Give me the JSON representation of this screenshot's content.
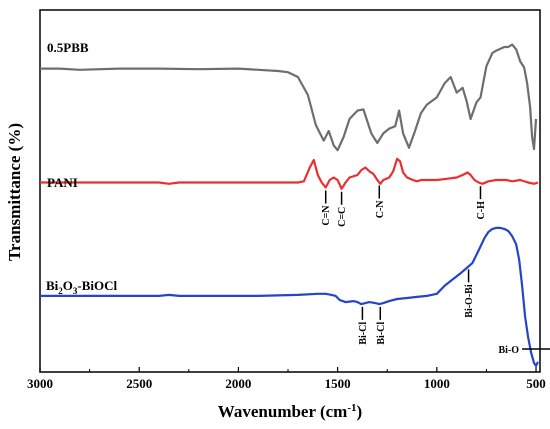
{
  "chart_data": {
    "type": "line",
    "xlabel": "Wavenumber (cm",
    "xlabel_sup": "-1",
    "xlabel_end": ")",
    "ylabel": "Transmittance (%)",
    "xlim": [
      3000,
      480
    ],
    "x_reversed": true,
    "y_ticks_shown": false,
    "grid": false,
    "xticks": [
      "3000",
      "2500",
      "2000",
      "1500",
      "1000",
      "500"
    ],
    "series": [
      {
        "name": "0.5PBB",
        "color": "#6e6e6e",
        "points": [
          [
            3000,
            72
          ],
          [
            2900,
            72
          ],
          [
            2800,
            71
          ],
          [
            2600,
            72
          ],
          [
            2400,
            72
          ],
          [
            2200,
            71.5
          ],
          [
            2000,
            72
          ],
          [
            1900,
            71
          ],
          [
            1800,
            70
          ],
          [
            1750,
            69
          ],
          [
            1700,
            65
          ],
          [
            1650,
            50
          ],
          [
            1610,
            25
          ],
          [
            1570,
            12
          ],
          [
            1545,
            20
          ],
          [
            1520,
            8
          ],
          [
            1500,
            4
          ],
          [
            1470,
            15
          ],
          [
            1440,
            30
          ],
          [
            1400,
            37
          ],
          [
            1370,
            38
          ],
          [
            1330,
            18
          ],
          [
            1300,
            10
          ],
          [
            1270,
            18
          ],
          [
            1240,
            22
          ],
          [
            1210,
            24
          ],
          [
            1190,
            37
          ],
          [
            1170,
            18
          ],
          [
            1140,
            6
          ],
          [
            1110,
            20
          ],
          [
            1080,
            35
          ],
          [
            1050,
            42
          ],
          [
            1000,
            48
          ],
          [
            960,
            60
          ],
          [
            930,
            65
          ],
          [
            900,
            52
          ],
          [
            870,
            56
          ],
          [
            850,
            45
          ],
          [
            830,
            30
          ],
          [
            800,
            44
          ],
          [
            780,
            48
          ],
          [
            750,
            74
          ],
          [
            720,
            85
          ],
          [
            700,
            87
          ],
          [
            660,
            90
          ],
          [
            640,
            90
          ],
          [
            620,
            92
          ],
          [
            600,
            88
          ],
          [
            580,
            78
          ],
          [
            560,
            73
          ],
          [
            545,
            60
          ],
          [
            530,
            40
          ],
          [
            520,
            15
          ],
          [
            510,
            5
          ],
          [
            500,
            30
          ]
        ]
      },
      {
        "name": "PANI",
        "color": "#e8302f",
        "points": [
          [
            3000,
            78
          ],
          [
            2800,
            78
          ],
          [
            2600,
            78
          ],
          [
            2400,
            78
          ],
          [
            2350,
            77
          ],
          [
            2300,
            78
          ],
          [
            2100,
            78
          ],
          [
            1900,
            78
          ],
          [
            1700,
            78
          ],
          [
            1670,
            79
          ],
          [
            1640,
            90
          ],
          [
            1620,
            96
          ],
          [
            1600,
            84
          ],
          [
            1580,
            78
          ],
          [
            1560,
            74
          ],
          [
            1540,
            80
          ],
          [
            1520,
            82
          ],
          [
            1500,
            80
          ],
          [
            1480,
            73
          ],
          [
            1460,
            78
          ],
          [
            1440,
            82
          ],
          [
            1400,
            84
          ],
          [
            1380,
            88
          ],
          [
            1360,
            90
          ],
          [
            1340,
            87
          ],
          [
            1320,
            85
          ],
          [
            1300,
            80
          ],
          [
            1285,
            77
          ],
          [
            1270,
            80
          ],
          [
            1240,
            82
          ],
          [
            1220,
            87
          ],
          [
            1200,
            97
          ],
          [
            1185,
            95
          ],
          [
            1170,
            86
          ],
          [
            1150,
            82
          ],
          [
            1120,
            80
          ],
          [
            1100,
            79
          ],
          [
            1080,
            80
          ],
          [
            1060,
            80
          ],
          [
            1000,
            80
          ],
          [
            950,
            81
          ],
          [
            900,
            82
          ],
          [
            870,
            84
          ],
          [
            845,
            86
          ],
          [
            830,
            84
          ],
          [
            810,
            80
          ],
          [
            790,
            78
          ],
          [
            770,
            77
          ],
          [
            740,
            79
          ],
          [
            700,
            80
          ],
          [
            650,
            80
          ],
          [
            620,
            79
          ],
          [
            580,
            80
          ],
          [
            540,
            78
          ],
          [
            510,
            77
          ],
          [
            490,
            78
          ]
        ]
      },
      {
        "name": "Bi2O3-BiOCl",
        "label_main": "Bi",
        "label_sub1": "2",
        "label_mid": "O",
        "label_sub2": "3",
        "label_end": "-BiOCl",
        "color": "#2445c8",
        "points": [
          [
            3000,
            70
          ],
          [
            2800,
            70
          ],
          [
            2600,
            70
          ],
          [
            2400,
            70
          ],
          [
            2350,
            71
          ],
          [
            2300,
            70
          ],
          [
            2100,
            70
          ],
          [
            1900,
            70
          ],
          [
            1700,
            71
          ],
          [
            1600,
            72
          ],
          [
            1560,
            72
          ],
          [
            1530,
            71
          ],
          [
            1510,
            70
          ],
          [
            1490,
            66
          ],
          [
            1460,
            64
          ],
          [
            1420,
            65
          ],
          [
            1400,
            64
          ],
          [
            1380,
            62
          ],
          [
            1360,
            63
          ],
          [
            1340,
            64
          ],
          [
            1310,
            63
          ],
          [
            1290,
            62
          ],
          [
            1270,
            63
          ],
          [
            1240,
            65
          ],
          [
            1200,
            67
          ],
          [
            1150,
            68
          ],
          [
            1100,
            69
          ],
          [
            1050,
            70
          ],
          [
            1000,
            72
          ],
          [
            960,
            80
          ],
          [
            920,
            86
          ],
          [
            880,
            92
          ],
          [
            850,
            97
          ],
          [
            820,
            102
          ],
          [
            800,
            110
          ],
          [
            780,
            118
          ],
          [
            760,
            126
          ],
          [
            740,
            132
          ],
          [
            720,
            135
          ],
          [
            700,
            136
          ],
          [
            680,
            136
          ],
          [
            660,
            135
          ],
          [
            640,
            133
          ],
          [
            620,
            128
          ],
          [
            600,
            120
          ],
          [
            585,
            105
          ],
          [
            570,
            80
          ],
          [
            555,
            50
          ],
          [
            540,
            30
          ],
          [
            525,
            15
          ],
          [
            510,
            5
          ],
          [
            500,
            2
          ],
          [
            490,
            6
          ]
        ]
      }
    ],
    "annotations": [
      {
        "text": "C=N",
        "x": 1560,
        "series": "PANI"
      },
      {
        "text": "C=C",
        "x": 1480,
        "series": "PANI"
      },
      {
        "text": "C-N",
        "x": 1290,
        "series": "PANI"
      },
      {
        "text": "C-H",
        "x": 780,
        "series": "PANI"
      },
      {
        "text": "Bi-Cl",
        "x": 1375,
        "series": "Bi2O3-BiOCl"
      },
      {
        "text": "Bi-Cl",
        "x": 1285,
        "series": "Bi2O3-BiOCl"
      },
      {
        "text": "Bi-O-Bi",
        "x": 840,
        "series": "Bi2O3-BiOCl"
      },
      {
        "text": "Bi-O",
        "x": 520,
        "series": "Bi2O3-BiOCl"
      }
    ]
  }
}
